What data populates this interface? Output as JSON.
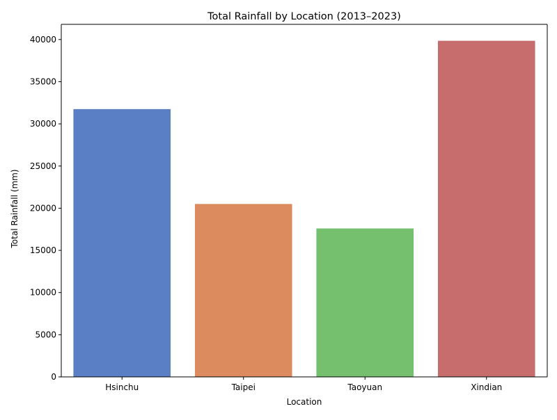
{
  "chart_data": {
    "type": "bar",
    "title": "Total Rainfall by Location (2013–2023)",
    "xlabel": "Location",
    "ylabel": "Total Rainfall (mm)",
    "categories": [
      "Hsinchu",
      "Taipei",
      "Taoyuan",
      "Xindian"
    ],
    "values": [
      31750,
      20500,
      17600,
      39850
    ],
    "colors": [
      "#5a7fc4",
      "#db8b5e",
      "#74c06f",
      "#c86d6d"
    ],
    "ylim": [
      0,
      41800
    ],
    "yticks": [
      0,
      5000,
      10000,
      15000,
      20000,
      25000,
      30000,
      35000,
      40000
    ],
    "ytick_labels": [
      "0",
      "5000",
      "10000",
      "15000",
      "20000",
      "25000",
      "30000",
      "35000",
      "40000"
    ],
    "grid": false,
    "legend": "none"
  }
}
